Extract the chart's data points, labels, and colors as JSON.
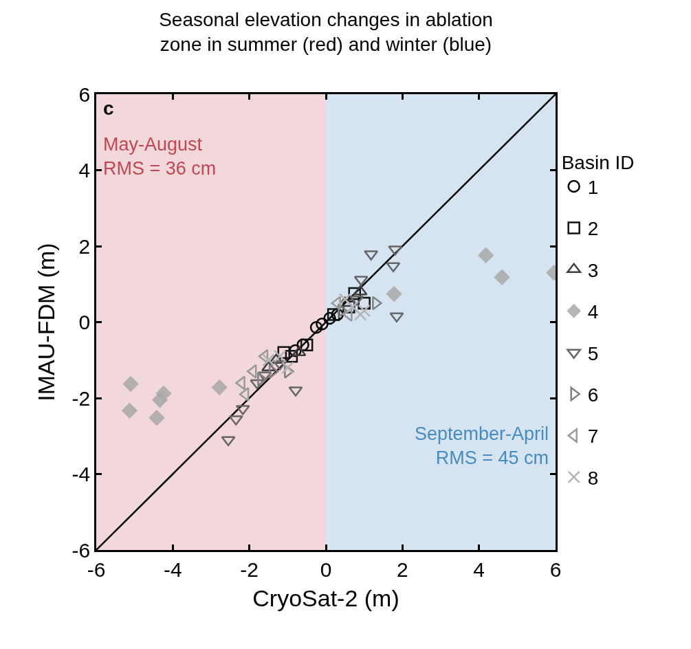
{
  "chart_data": {
    "type": "scatter",
    "title": "Seasonal elevation changes in ablation\nzone in summer (red) and winter (blue)",
    "xlabel": "CryoSat-2 (m)",
    "ylabel": "IMAU-FDM (m)",
    "legend_title": "Basin ID",
    "xlim": [
      -6,
      6
    ],
    "ylim": [
      -6,
      6
    ],
    "xticks": [
      -6,
      -4,
      -2,
      0,
      2,
      4,
      6
    ],
    "yticks": [
      -6,
      -4,
      -2,
      0,
      2,
      4,
      6
    ],
    "grid": false,
    "legend": "right",
    "annotations": [
      "c"
    ],
    "bands": [
      {
        "axis": "x",
        "from": -6,
        "to": 0,
        "label": "May-August\nRMS = 36 cm",
        "color": "#f2d8db"
      },
      {
        "axis": "x",
        "from": 0,
        "to": 6,
        "label": "September-April\nRMS = 45 cm",
        "color": "#d5e4f0"
      }
    ],
    "series": [
      {
        "type": "line",
        "color": "#000000",
        "x": [
          -6,
          6
        ],
        "values": [
          -6,
          6
        ],
        "marker": "none"
      },
      {
        "name": "1",
        "color": "#000000",
        "marker": "circle",
        "x": [
          -0.8,
          -0.6,
          -0.25,
          -0.1,
          0.1,
          0.3
        ],
        "values": [
          -0.75,
          -0.6,
          -0.14,
          -0.05,
          0.1,
          0.2
        ]
      },
      {
        "name": "2",
        "color": "#111111",
        "marker": "square",
        "x": [
          -1.1,
          -0.9,
          -0.5,
          0.2,
          0.6,
          0.75,
          1.0
        ],
        "values": [
          -0.8,
          -0.9,
          -0.6,
          0.2,
          0.4,
          0.75,
          0.5
        ]
      },
      {
        "name": "3",
        "color": "#404040",
        "marker": "triangle",
        "x": [
          -1.5,
          -1.3,
          -0.7,
          0.5,
          0.9
        ],
        "values": [
          -1.2,
          -1.0,
          -0.8,
          0.5,
          0.8
        ]
      },
      {
        "name": "4",
        "color": "#a8a8a8",
        "marker": "diamond",
        "x": [
          -5.1,
          -5.13,
          -4.24,
          -4.34,
          -4.42,
          -2.78,
          1.78,
          4.18,
          4.6,
          5.96
        ],
        "values": [
          -1.63,
          -2.33,
          -1.88,
          -2.05,
          -2.52,
          -1.72,
          0.74,
          1.76,
          1.18,
          1.3
        ]
      },
      {
        "name": "5",
        "color": "#666666",
        "marker": "triangle-down",
        "x": [
          -2.55,
          -2.35,
          -2.17,
          -1.8,
          -1.6,
          -1.2,
          -0.79,
          0.8,
          0.92,
          1.18,
          1.76,
          1.81,
          1.85
        ],
        "values": [
          -3.1,
          -2.55,
          -2.28,
          -1.6,
          -1.4,
          -1.1,
          -1.79,
          0.6,
          1.12,
          1.79,
          1.48,
          1.92,
          0.16
        ]
      },
      {
        "name": "6",
        "color": "#808080",
        "marker": "triangle-right",
        "x": [
          -1.7,
          -1.4,
          -1.0,
          0.4,
          1.3
        ],
        "values": [
          -1.5,
          -1.3,
          -1.3,
          0.3,
          0.5
        ]
      },
      {
        "name": "7",
        "color": "#999999",
        "marker": "triangle-left",
        "x": [
          -2.2,
          -2.1,
          -1.9,
          -1.6,
          0.3,
          0.6
        ],
        "values": [
          -1.6,
          -1.9,
          -1.3,
          -0.9,
          0.5,
          0.2
        ]
      },
      {
        "name": "8",
        "color": "#b3b3b3",
        "marker": "cross",
        "x": [
          -1.5,
          -1.2,
          -1.0,
          0.5,
          0.7,
          0.9,
          1.0
        ],
        "values": [
          -1.0,
          -0.9,
          -1.2,
          0.6,
          0.4,
          0.2,
          0.3
        ]
      }
    ]
  }
}
